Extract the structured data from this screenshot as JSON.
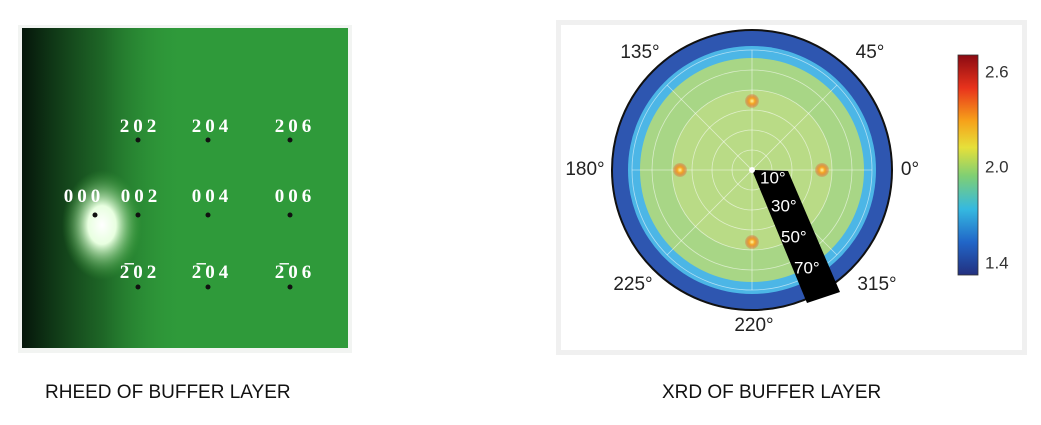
{
  "rheed": {
    "labels": [
      "202",
      "204",
      "206",
      "000",
      "002",
      "004",
      "006",
      "2̅02",
      "2̅04",
      "2̅06"
    ]
  },
  "xrd": {
    "angle_labels": [
      "135°",
      "45°",
      "180°",
      "0°",
      "225°",
      "315°",
      "220°"
    ],
    "radial_labels": [
      "10°",
      "30°",
      "50°",
      "70°"
    ],
    "colorbar_ticks": [
      "2.6",
      "2.0",
      "1.4"
    ]
  },
  "captions": [
    "RHEED OF BUFFER LAYER",
    "XRD OF BUFFER LAYER"
  ]
}
